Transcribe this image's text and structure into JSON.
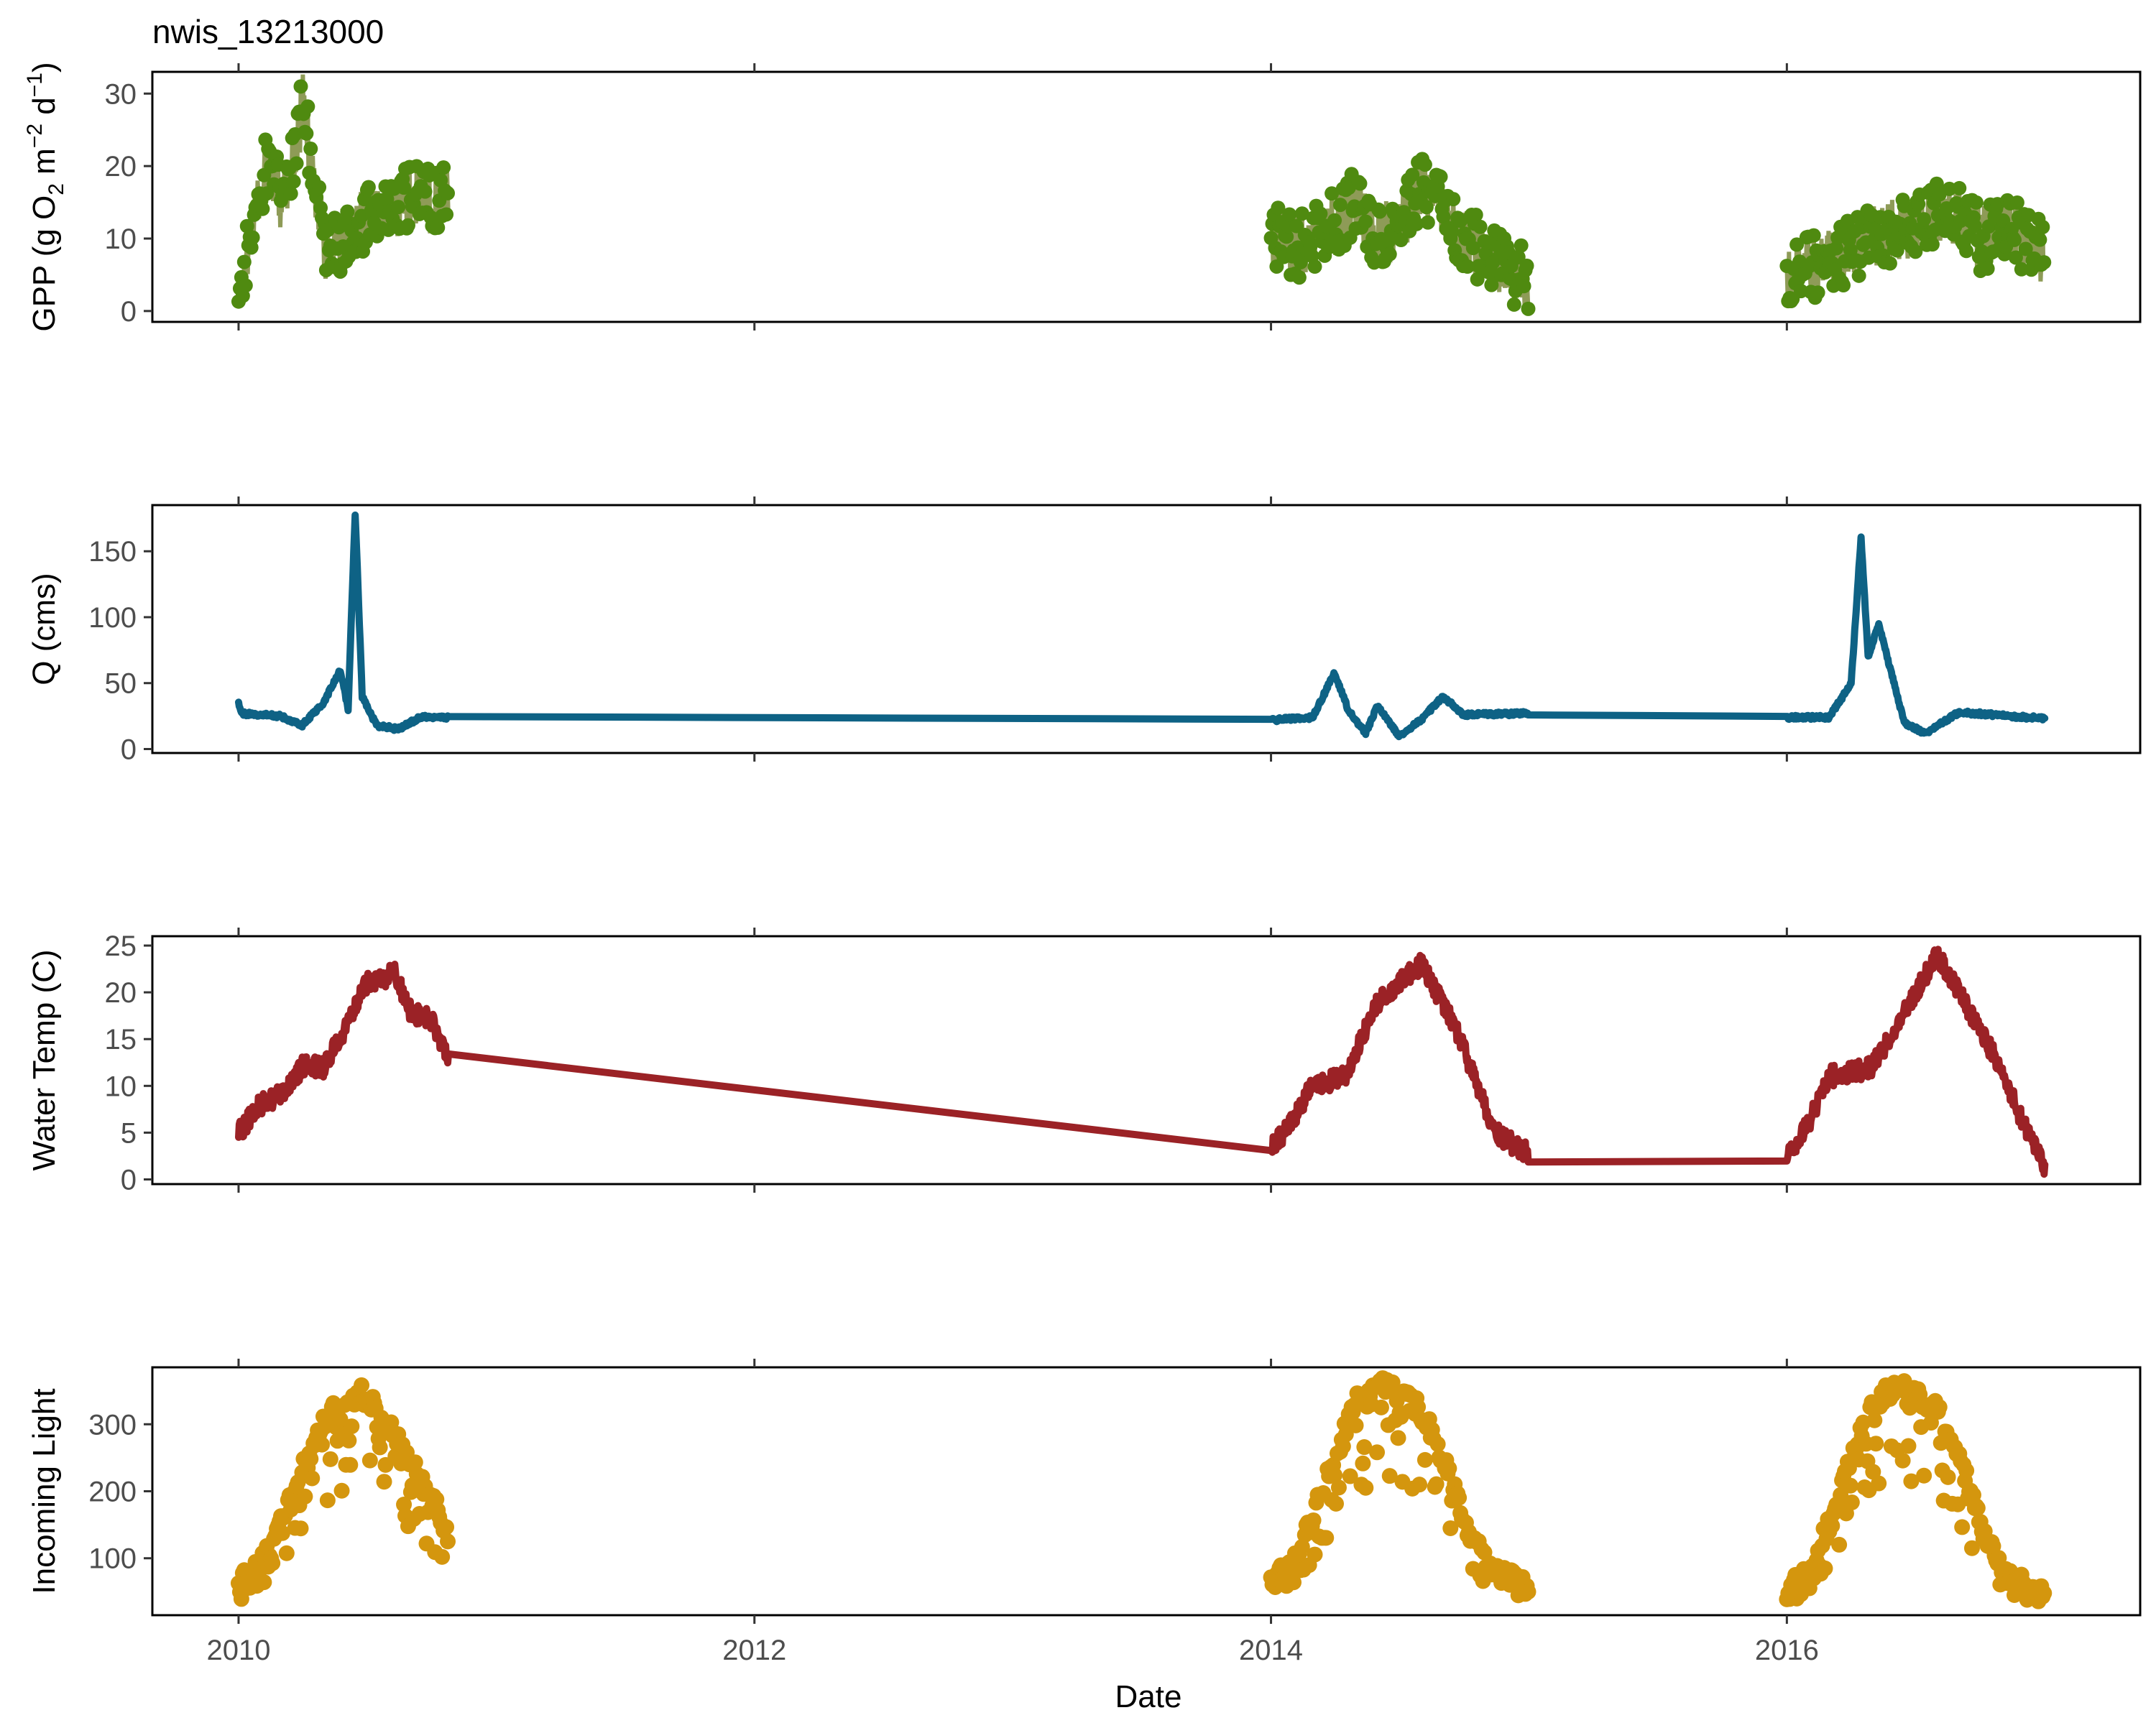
{
  "chart_data": {
    "type": "line",
    "title": "nwis_13213000",
    "xlabel": "Date",
    "x_range": [
      "2009-09-01",
      "2017-05-15"
    ],
    "x_ticks": [
      "2010",
      "2012",
      "2014",
      "2016"
    ],
    "x_tick_dates": [
      "2010-01-01",
      "2012-01-01",
      "2014-01-01",
      "2016-01-01"
    ],
    "segments": [
      [
        "2010-01-01",
        "2010-10-25"
      ],
      [
        "2014-01-01",
        "2014-12-31"
      ],
      [
        "2016-01-01",
        "2016-12-31"
      ]
    ],
    "panels": [
      {
        "id": "gpp",
        "type": "scatter_line",
        "ylabel": "GPP (g  O2 m-2 d-1)",
        "ylabel_parts": {
          "pre": "GPP (g  O",
          "sub": "2",
          "mid1": " m",
          "sup1": "−2",
          "mid2": " d",
          "sup2": "−1",
          "post": ")"
        },
        "ylim": [
          -1.5,
          33
        ],
        "yticks": [
          "0",
          "10",
          "20",
          "30"
        ],
        "ytick_values": [
          0,
          10,
          20,
          30
        ],
        "color": "#4f8a10",
        "line_color": "#7a8a3a",
        "anchors": [
          {
            "x": "2010-01-01",
            "y": 1
          },
          {
            "x": "2010-01-15",
            "y": 9
          },
          {
            "x": "2010-02-10",
            "y": 20
          },
          {
            "x": "2010-03-01",
            "y": 16
          },
          {
            "x": "2010-03-25",
            "y": 22
          },
          {
            "x": "2010-04-01",
            "y": 29
          },
          {
            "x": "2010-04-20",
            "y": 17
          },
          {
            "x": "2010-05-05",
            "y": 8
          },
          {
            "x": "2010-06-01",
            "y": 10
          },
          {
            "x": "2010-07-01",
            "y": 13
          },
          {
            "x": "2010-08-01",
            "y": 14
          },
          {
            "x": "2010-09-01",
            "y": 16
          },
          {
            "x": "2010-10-01",
            "y": 15
          },
          {
            "x": "2010-10-25",
            "y": 17
          },
          {
            "x": "2014-01-01",
            "y": 10
          },
          {
            "x": "2014-02-15",
            "y": 9
          },
          {
            "x": "2014-04-01",
            "y": 12
          },
          {
            "x": "2014-05-01",
            "y": 15
          },
          {
            "x": "2014-06-01",
            "y": 10
          },
          {
            "x": "2014-07-01",
            "y": 12
          },
          {
            "x": "2014-08-01",
            "y": 17
          },
          {
            "x": "2014-09-01",
            "y": 14
          },
          {
            "x": "2014-10-15",
            "y": 9
          },
          {
            "x": "2014-12-31",
            "y": 4
          },
          {
            "x": "2016-01-01",
            "y": 5
          },
          {
            "x": "2016-03-01",
            "y": 7
          },
          {
            "x": "2016-05-01",
            "y": 10
          },
          {
            "x": "2016-07-01",
            "y": 12
          },
          {
            "x": "2016-08-15",
            "y": 14
          },
          {
            "x": "2016-10-01",
            "y": 10
          },
          {
            "x": "2016-11-15",
            "y": 11
          },
          {
            "x": "2016-12-31",
            "y": 8
          }
        ]
      },
      {
        "id": "q",
        "type": "line",
        "ylabel": "Q (cms)",
        "ylim": [
          -3,
          185
        ],
        "yticks": [
          "0",
          "50",
          "100",
          "150"
        ],
        "ytick_values": [
          0,
          50,
          100,
          150
        ],
        "color": "#0e6285",
        "anchors": [
          {
            "x": "2010-01-01",
            "y": 35
          },
          {
            "x": "2010-01-05",
            "y": 27
          },
          {
            "x": "2010-03-01",
            "y": 25
          },
          {
            "x": "2010-04-01",
            "y": 18
          },
          {
            "x": "2010-05-01",
            "y": 35
          },
          {
            "x": "2010-05-25",
            "y": 60
          },
          {
            "x": "2010-06-05",
            "y": 30
          },
          {
            "x": "2010-06-15",
            "y": 178
          },
          {
            "x": "2010-06-25",
            "y": 40
          },
          {
            "x": "2010-07-15",
            "y": 18
          },
          {
            "x": "2010-08-15",
            "y": 15
          },
          {
            "x": "2010-09-15",
            "y": 24
          },
          {
            "x": "2010-10-25",
            "y": 24
          },
          {
            "x": "2014-01-01",
            "y": 22
          },
          {
            "x": "2014-03-01",
            "y": 24
          },
          {
            "x": "2014-04-01",
            "y": 58
          },
          {
            "x": "2014-04-20",
            "y": 30
          },
          {
            "x": "2014-05-15",
            "y": 12
          },
          {
            "x": "2014-06-01",
            "y": 33
          },
          {
            "x": "2014-07-01",
            "y": 10
          },
          {
            "x": "2014-08-01",
            "y": 22
          },
          {
            "x": "2014-09-01",
            "y": 40
          },
          {
            "x": "2014-10-01",
            "y": 26
          },
          {
            "x": "2014-12-31",
            "y": 27
          },
          {
            "x": "2016-01-01",
            "y": 24
          },
          {
            "x": "2016-03-01",
            "y": 24
          },
          {
            "x": "2016-04-01",
            "y": 50
          },
          {
            "x": "2016-04-15",
            "y": 160
          },
          {
            "x": "2016-04-25",
            "y": 70
          },
          {
            "x": "2016-05-10",
            "y": 95
          },
          {
            "x": "2016-06-15",
            "y": 20
          },
          {
            "x": "2016-07-15",
            "y": 12
          },
          {
            "x": "2016-09-01",
            "y": 28
          },
          {
            "x": "2016-12-31",
            "y": 23
          }
        ]
      },
      {
        "id": "temp",
        "type": "line",
        "ylabel": "Water Temp (C)",
        "ylim": [
          -0.5,
          26
        ],
        "yticks": [
          "0",
          "5",
          "10",
          "15",
          "20",
          "25"
        ],
        "ytick_values": [
          0,
          5,
          10,
          15,
          20,
          25
        ],
        "color": "#9b2226",
        "anchors": [
          {
            "x": "2010-01-01",
            "y": 5
          },
          {
            "x": "2010-02-01",
            "y": 8
          },
          {
            "x": "2010-03-01",
            "y": 9
          },
          {
            "x": "2010-04-01",
            "y": 12
          },
          {
            "x": "2010-05-01",
            "y": 12
          },
          {
            "x": "2010-06-01",
            "y": 16
          },
          {
            "x": "2010-07-01",
            "y": 21
          },
          {
            "x": "2010-08-10",
            "y": 22
          },
          {
            "x": "2010-09-01",
            "y": 18
          },
          {
            "x": "2010-10-01",
            "y": 17
          },
          {
            "x": "2010-10-25",
            "y": 13
          },
          {
            "x": "2014-01-01",
            "y": 3.5
          },
          {
            "x": "2014-01-20",
            "y": 5
          },
          {
            "x": "2014-03-01",
            "y": 10
          },
          {
            "x": "2014-04-15",
            "y": 11
          },
          {
            "x": "2014-06-01",
            "y": 19
          },
          {
            "x": "2014-07-15",
            "y": 22
          },
          {
            "x": "2014-08-01",
            "y": 23
          },
          {
            "x": "2014-09-15",
            "y": 17
          },
          {
            "x": "2014-10-20",
            "y": 10
          },
          {
            "x": "2014-11-15",
            "y": 5
          },
          {
            "x": "2014-12-31",
            "y": 2.7
          },
          {
            "x": "2016-01-01",
            "y": 2.2
          },
          {
            "x": "2016-02-01",
            "y": 6
          },
          {
            "x": "2016-03-01",
            "y": 11
          },
          {
            "x": "2016-05-01",
            "y": 12
          },
          {
            "x": "2016-06-15",
            "y": 18
          },
          {
            "x": "2016-08-01",
            "y": 24
          },
          {
            "x": "2016-09-01",
            "y": 20
          },
          {
            "x": "2016-10-15",
            "y": 14
          },
          {
            "x": "2016-12-01",
            "y": 6
          },
          {
            "x": "2016-12-31",
            "y": 1.5
          }
        ]
      },
      {
        "id": "light",
        "type": "scatter",
        "ylabel": "Incoming Light",
        "ylim": [
          15,
          385
        ],
        "yticks": [
          "100",
          "200",
          "300"
        ],
        "ytick_values": [
          100,
          200,
          300
        ],
        "color": "#d4960e",
        "anchors": [
          {
            "x": "2010-01-01",
            "y": 60
          },
          {
            "x": "2010-02-01",
            "y": 90
          },
          {
            "x": "2010-03-01",
            "y": 150
          },
          {
            "x": "2010-04-01",
            "y": 230
          },
          {
            "x": "2010-05-01",
            "y": 300
          },
          {
            "x": "2010-06-01",
            "y": 340
          },
          {
            "x": "2010-07-01",
            "y": 345
          },
          {
            "x": "2010-08-01",
            "y": 300
          },
          {
            "x": "2010-09-01",
            "y": 240
          },
          {
            "x": "2010-10-01",
            "y": 190
          },
          {
            "x": "2010-10-25",
            "y": 140
          },
          {
            "x": "2014-01-01",
            "y": 70
          },
          {
            "x": "2014-02-01",
            "y": 90
          },
          {
            "x": "2014-03-01",
            "y": 160
          },
          {
            "x": "2014-04-01",
            "y": 250
          },
          {
            "x": "2014-05-01",
            "y": 330
          },
          {
            "x": "2014-06-15",
            "y": 360
          },
          {
            "x": "2014-08-01",
            "y": 320
          },
          {
            "x": "2014-09-01",
            "y": 250
          },
          {
            "x": "2014-10-01",
            "y": 160
          },
          {
            "x": "2014-11-01",
            "y": 90
          },
          {
            "x": "2014-12-31",
            "y": 55
          },
          {
            "x": "2016-01-01",
            "y": 50
          },
          {
            "x": "2016-02-01",
            "y": 80
          },
          {
            "x": "2016-03-01",
            "y": 150
          },
          {
            "x": "2016-04-01",
            "y": 250
          },
          {
            "x": "2016-05-01",
            "y": 330
          },
          {
            "x": "2016-06-15",
            "y": 365
          },
          {
            "x": "2016-08-01",
            "y": 320
          },
          {
            "x": "2016-09-01",
            "y": 250
          },
          {
            "x": "2016-10-01",
            "y": 150
          },
          {
            "x": "2016-11-01",
            "y": 80
          },
          {
            "x": "2016-12-31",
            "y": 50
          }
        ]
      }
    ]
  }
}
